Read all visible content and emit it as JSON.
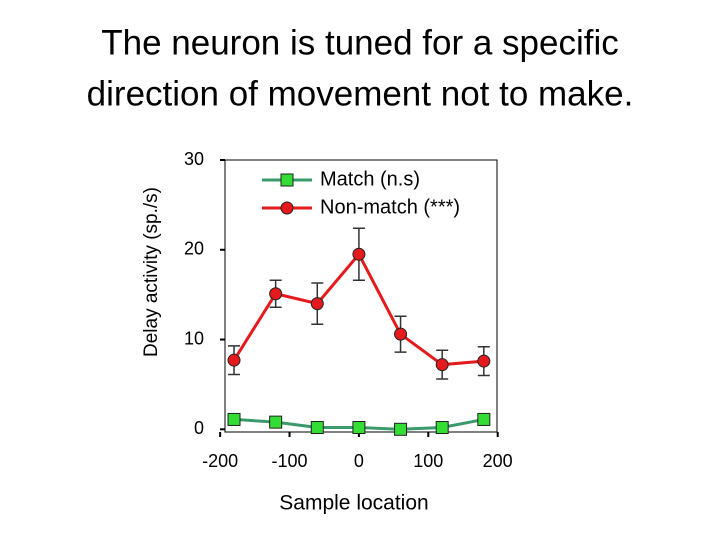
{
  "chart_data": {
    "type": "line",
    "title": [
      "The neuron is tuned for a specific",
      "direction of movement not to make."
    ],
    "x_label": "Sample location",
    "y_label": "Delay activity (sp./s)",
    "x": [
      -180,
      -120,
      -60,
      0,
      60,
      120,
      180
    ],
    "series": [
      {
        "name": "Match (n.s)",
        "color": "#3a9a6a",
        "marker_color": "#33dd33",
        "marker": "square",
        "values": [
          1.1,
          0.8,
          0.2,
          0.2,
          0.0,
          0.2,
          1.1
        ],
        "errors": [
          0.3,
          0.3,
          0.3,
          0.3,
          0.3,
          0.3,
          0.3
        ]
      },
      {
        "name": "Non-match (***)",
        "color": "#e41a1c",
        "marker_color": "#e41a1c",
        "marker": "circle",
        "values": [
          7.7,
          15.1,
          14.0,
          19.5,
          10.6,
          7.2,
          7.6
        ],
        "errors": [
          1.6,
          1.5,
          2.3,
          2.9,
          2.0,
          1.6,
          1.6
        ]
      }
    ],
    "xlim": [
      -193,
      199
    ],
    "ylim": [
      -0.3,
      30
    ],
    "xticks": [
      -200,
      -100,
      0,
      100,
      200
    ],
    "yticks": [
      0,
      10,
      20,
      30
    ],
    "legend": "upper left"
  }
}
